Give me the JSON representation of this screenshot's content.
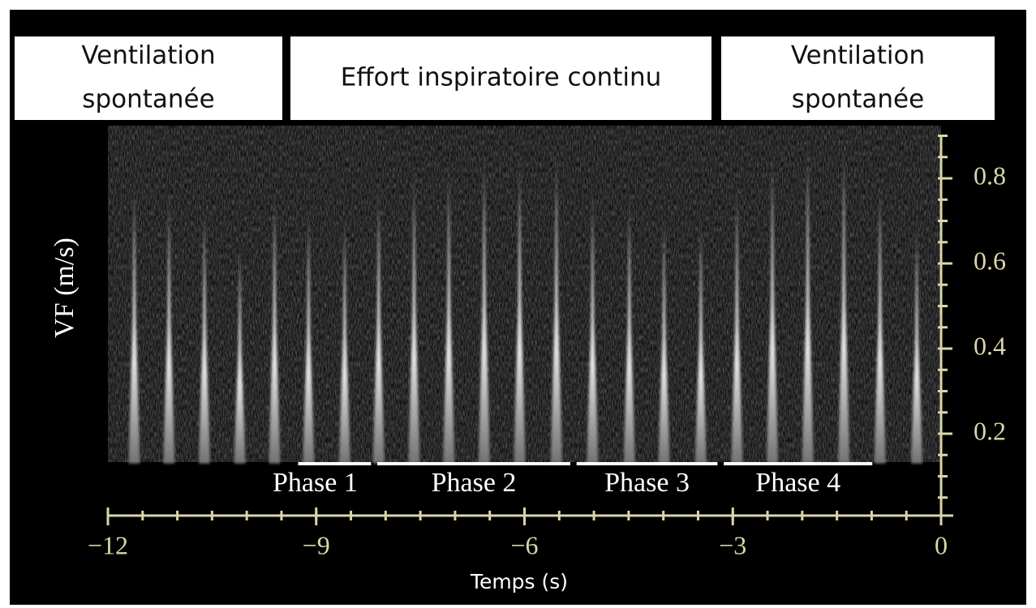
{
  "chart_data": {
    "type": "spectrogram",
    "headers": [
      {
        "lines": [
          "Ventilation",
          "spontanée"
        ]
      },
      {
        "lines": [
          "Effort inspiratoire continu"
        ]
      },
      {
        "lines": [
          "Ventilation",
          "spontanée"
        ]
      }
    ],
    "x_label": "Temps (s)",
    "y_label": "VF (m/s)",
    "x": [
      -11.62,
      -11.12,
      -10.61,
      -10.1,
      -9.6,
      -9.11,
      -8.59,
      -8.1,
      -7.59,
      -7.09,
      -6.58,
      -6.07,
      -5.54,
      -5.02,
      -4.49,
      -3.99,
      -3.46,
      -2.94,
      -2.43,
      -1.92,
      -1.4,
      -0.88,
      -0.35
    ],
    "values": [
      0.81,
      0.78,
      0.75,
      0.66,
      0.79,
      0.74,
      0.73,
      0.8,
      0.84,
      0.85,
      0.88,
      0.87,
      0.88,
      0.79,
      0.77,
      0.73,
      0.72,
      0.8,
      0.88,
      0.9,
      0.9,
      0.81,
      0.71
    ],
    "phases": [
      {
        "label": "Phase 1",
        "start": -9.26,
        "end": -8.21
      },
      {
        "label": "Phase 2",
        "start": -8.12,
        "end": -5.34
      },
      {
        "label": "Phase 3",
        "start": -5.25,
        "end": -3.22
      },
      {
        "label": "Phase 4",
        "start": -3.13,
        "end": -0.99
      }
    ],
    "xlim": [
      -12,
      0
    ],
    "xticks": [
      {
        "value": -12,
        "label": "−12"
      },
      {
        "value": -9,
        "label": "−9"
      },
      {
        "value": -6,
        "label": "−6"
      },
      {
        "value": -3,
        "label": "−3"
      },
      0
    ],
    "x_minor_step": 0.5,
    "ylim": [
      0,
      0.9
    ],
    "yticks": [
      0.2,
      0.4,
      0.6,
      0.8
    ],
    "y_minor_step": 0.05,
    "color": "#ffffff",
    "axis_color": "#d9d6a9"
  }
}
